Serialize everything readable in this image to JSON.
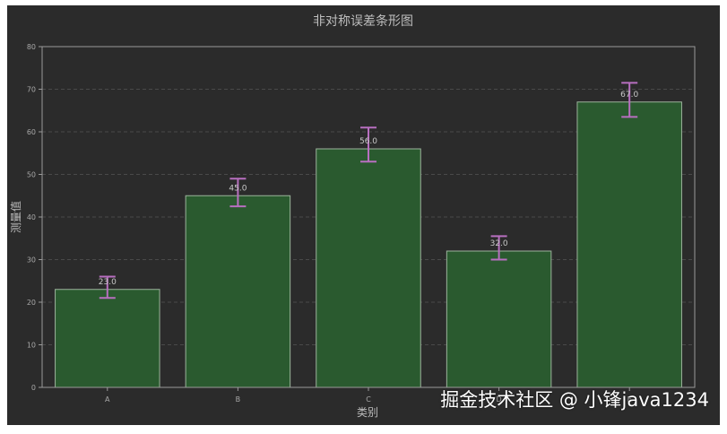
{
  "chart_data": {
    "type": "bar",
    "title": "非对称误差条形图",
    "xlabel": "类别",
    "ylabel": "测量值",
    "categories": [
      "A",
      "B",
      "C",
      "D",
      "E"
    ],
    "values": [
      23,
      45,
      56,
      32,
      67
    ],
    "value_labels": [
      "23.0",
      "45.0",
      "56.0",
      "32.0",
      "67.0"
    ],
    "error_lower": [
      2,
      2.5,
      3,
      2,
      3.5
    ],
    "error_upper": [
      3,
      4,
      5,
      3.5,
      4.5
    ],
    "ylim": [
      0,
      80
    ],
    "yticks": [
      "0",
      "10",
      "20",
      "30",
      "40",
      "50",
      "60",
      "70",
      "80"
    ],
    "grid": "y-dashed",
    "colors": {
      "background": "#2b2b2b",
      "bar_fill": "#2a5a2f",
      "bar_edge": "#9cb39c",
      "error_bar": "#b86fc0",
      "grid": "#555555",
      "axes": "#9a9a9a"
    }
  },
  "watermark": "掘金技术社区 @ 小锋java1234"
}
